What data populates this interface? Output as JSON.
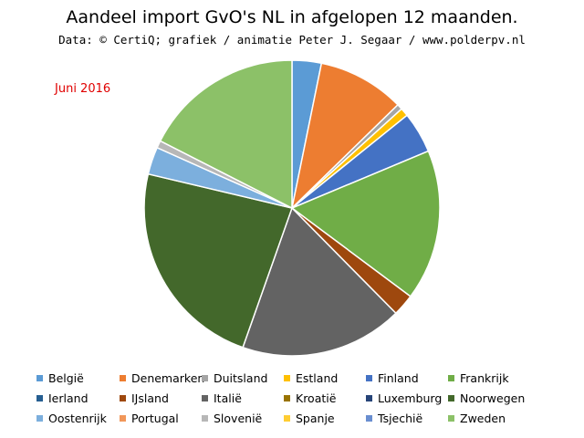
{
  "title": "Aandeel import GvO's NL in afgelopen 12 maanden.",
  "subtitle": "Data: © CertiQ; grafiek / animatie Peter J. Segaar / www.polderpv.nl",
  "period_label": "Juni 2016",
  "chart_data": {
    "type": "pie",
    "start_angle_deg": 0,
    "direction": "clockwise",
    "slices": [
      {
        "name": "België",
        "value": 3.2,
        "color": "#5b9bd5"
      },
      {
        "name": "Denemarken",
        "value": 9.5,
        "color": "#ed7d31"
      },
      {
        "name": "Duitsland",
        "value": 0.6,
        "color": "#a5a5a5"
      },
      {
        "name": "Estland",
        "value": 0.9,
        "color": "#ffc000"
      },
      {
        "name": "Finland",
        "value": 4.5,
        "color": "#4472c4"
      },
      {
        "name": "Frankrijk",
        "value": 16.5,
        "color": "#70ad47"
      },
      {
        "name": "Ierland",
        "value": 0.0,
        "color": "#255e91"
      },
      {
        "name": "IJsland",
        "value": 2.4,
        "color": "#9e480e"
      },
      {
        "name": "Italië",
        "value": 17.8,
        "color": "#636363"
      },
      {
        "name": "Kroatië",
        "value": 0.0,
        "color": "#997300"
      },
      {
        "name": "Luxemburg",
        "value": 0.0,
        "color": "#264478"
      },
      {
        "name": "Noorwegen",
        "value": 23.3,
        "color": "#43682b"
      },
      {
        "name": "Oostenrijk",
        "value": 3.0,
        "color": "#7cafdd"
      },
      {
        "name": "Portugal",
        "value": 0.0,
        "color": "#f1975a"
      },
      {
        "name": "Slovenië",
        "value": 0.8,
        "color": "#b7b7b7"
      },
      {
        "name": "Spanje",
        "value": 0.0,
        "color": "#ffcd33"
      },
      {
        "name": "Tsjechië",
        "value": 0.0,
        "color": "#698ed0"
      },
      {
        "name": "Zweden",
        "value": 17.5,
        "color": "#8cc168"
      }
    ]
  }
}
